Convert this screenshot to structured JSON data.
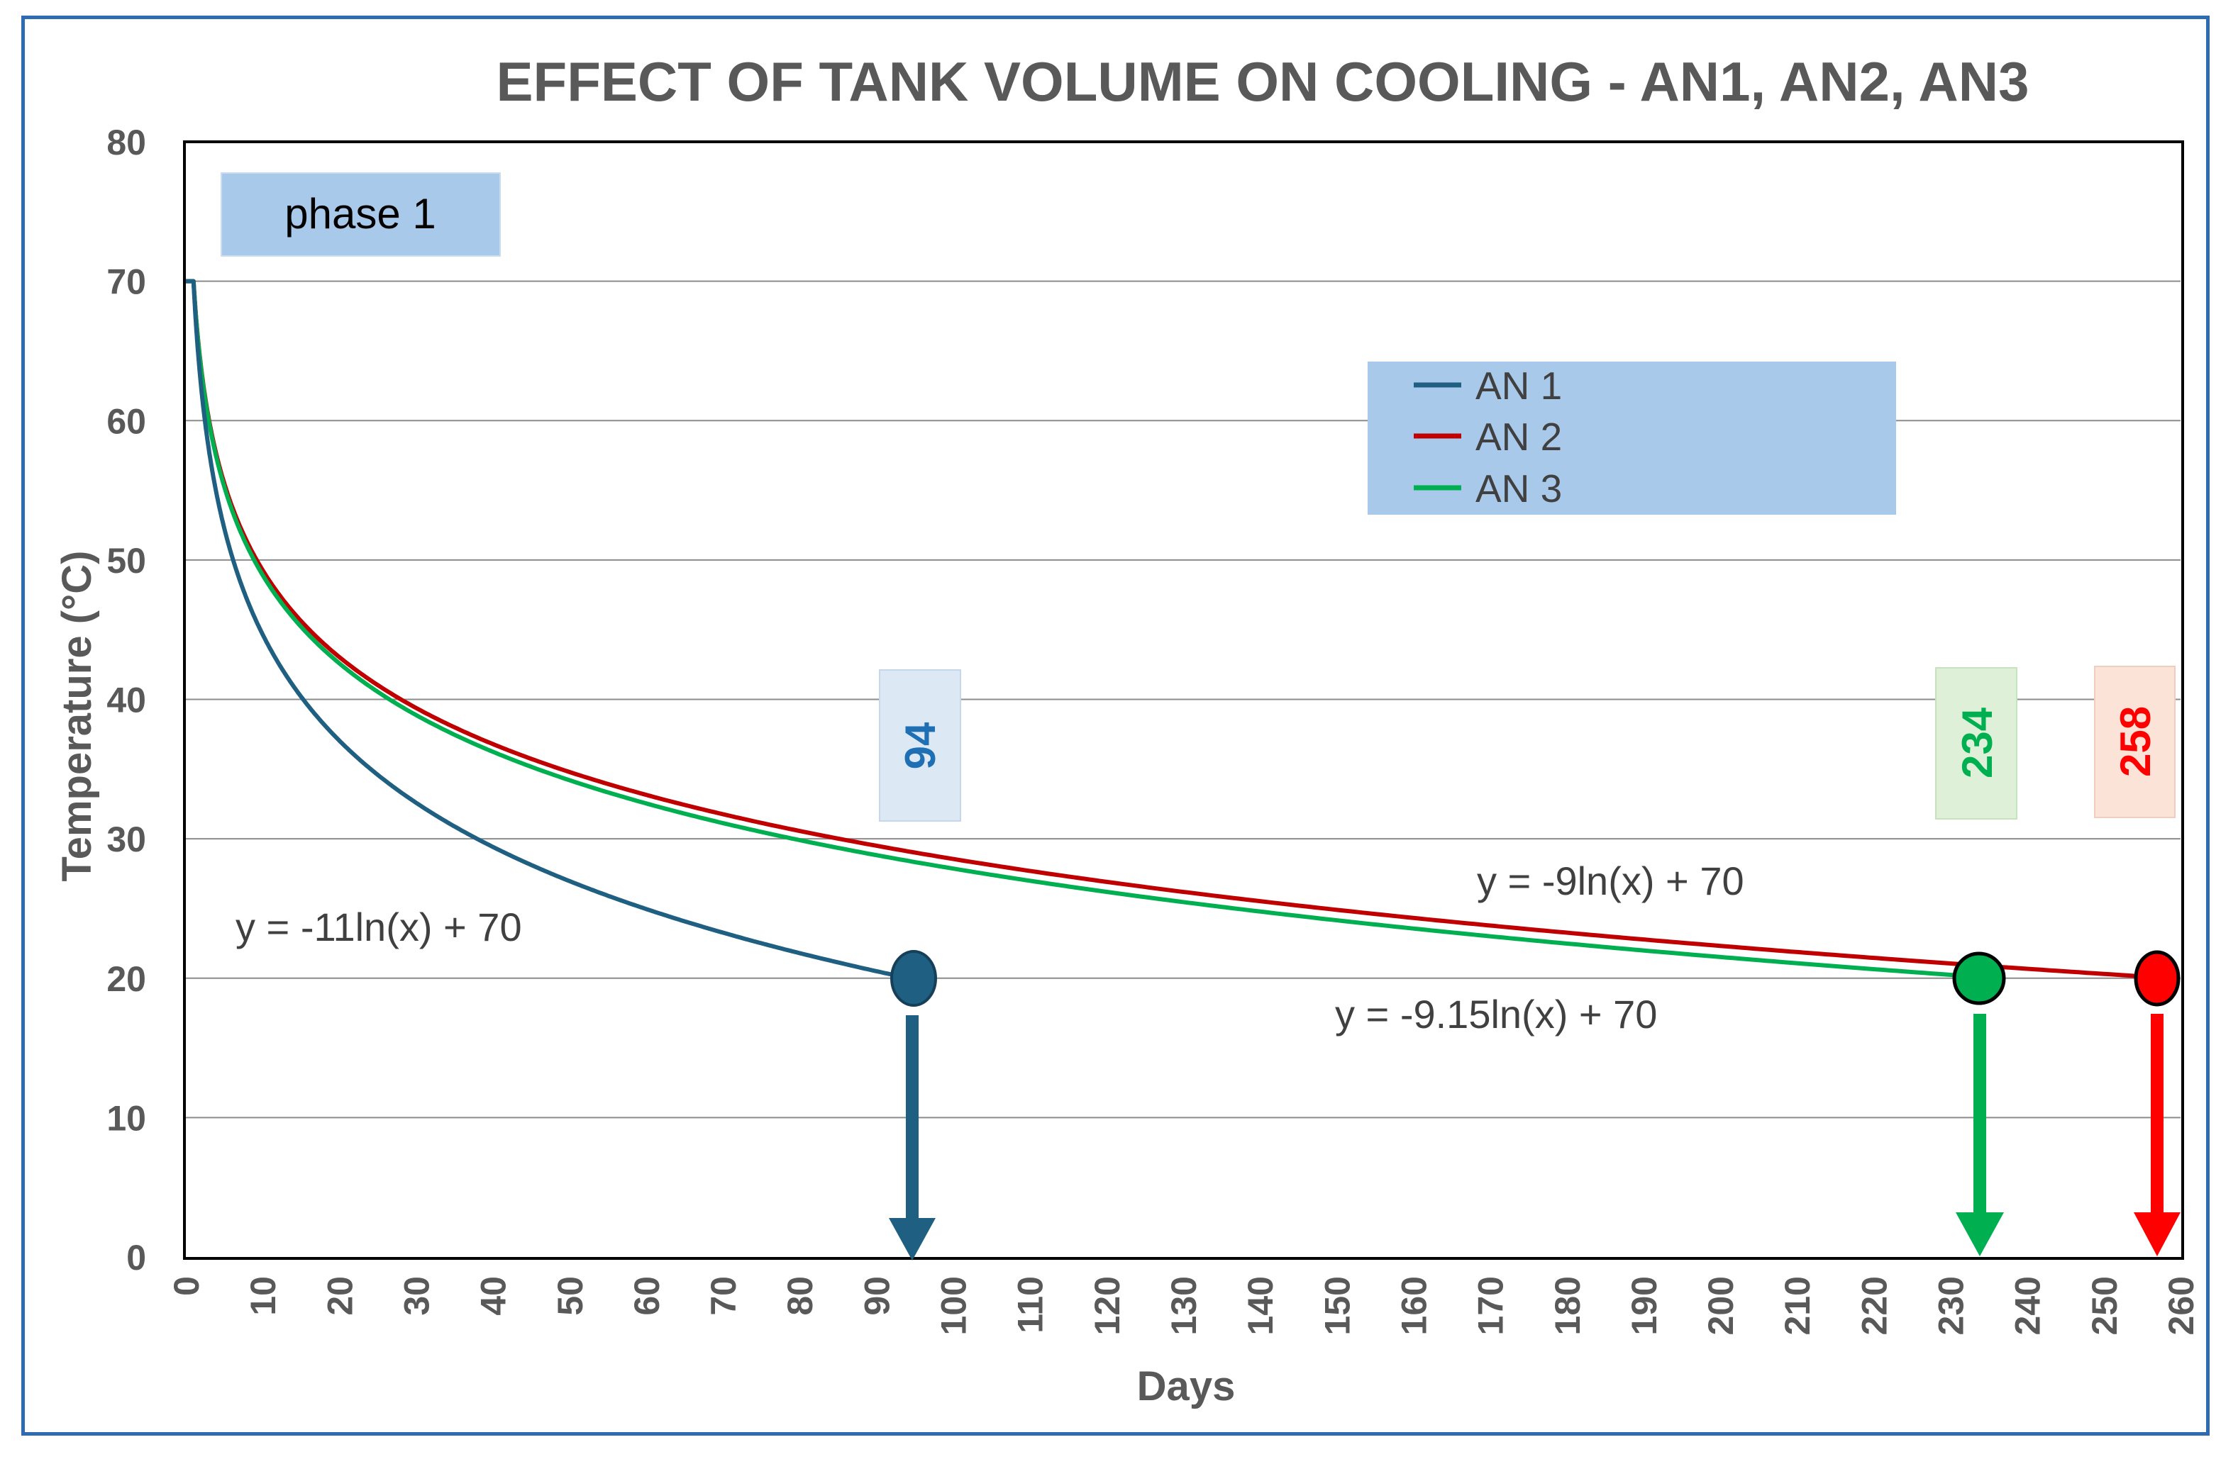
{
  "chart_data": {
    "type": "line",
    "title": "EFFECT OF TANK VOLUME ON COOLING - AN1, AN2, AN3",
    "xlabel": "Days",
    "ylabel": "Temperature (°C)",
    "xlim": [
      0,
      260
    ],
    "ylim": [
      0,
      80
    ],
    "x_ticks": [
      0,
      10,
      20,
      30,
      40,
      50,
      60,
      70,
      80,
      90,
      100,
      110,
      120,
      130,
      140,
      150,
      160,
      170,
      180,
      190,
      200,
      210,
      220,
      230,
      240,
      250,
      260
    ],
    "y_ticks": [
      0,
      10,
      20,
      30,
      40,
      50,
      60,
      70,
      80
    ],
    "grid": "horizontal",
    "legend_position": "top-right",
    "phase_label": "phase 1",
    "series": [
      {
        "name": "AN 1",
        "color": "#1f5f82",
        "a": -11,
        "b": 70,
        "x_end": 94,
        "end_value": 20,
        "equation": "y = -11ln(x) + 70",
        "marker_label": "94",
        "label_color": "#1f6fb4",
        "label_bg": "#dce9f5"
      },
      {
        "name": "AN 2",
        "color": "#c00000",
        "a": -9,
        "b": 70,
        "x_end": 258,
        "end_value": 20,
        "equation": "y = -9ln(x) + 70",
        "marker_label": "258",
        "label_color": "#ff0000",
        "label_bg": "#fbe3d8"
      },
      {
        "name": "AN 3",
        "color": "#00b050",
        "a": -9.15,
        "b": 70,
        "x_end": 234,
        "end_value": 20,
        "equation": "y = -9.15ln(x) + 70",
        "marker_label": "234",
        "label_color": "#00b050",
        "label_bg": "#dff0d8"
      }
    ]
  }
}
